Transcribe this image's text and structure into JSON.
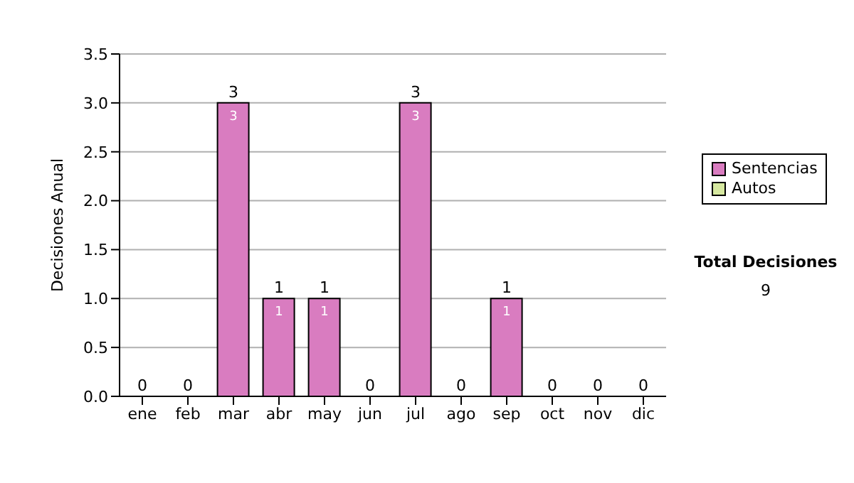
{
  "chart_data": {
    "type": "bar",
    "ylabel": "Decisiones Anual",
    "categories": [
      "ene",
      "feb",
      "mar",
      "abr",
      "may",
      "jun",
      "jul",
      "ago",
      "sep",
      "oct",
      "nov",
      "dic"
    ],
    "series": [
      {
        "name": "Sentencias",
        "color": "#d97cc0",
        "values": [
          0,
          0,
          3,
          1,
          1,
          0,
          3,
          0,
          1,
          0,
          0,
          0
        ],
        "value_labels": [
          null,
          null,
          "3",
          "1",
          "1",
          null,
          "3",
          null,
          "1",
          null,
          null,
          null
        ]
      },
      {
        "name": "Autos",
        "color": "#d6e8a0",
        "values": [
          0,
          0,
          0,
          0,
          0,
          0,
          0,
          0,
          0,
          0,
          0,
          0
        ]
      }
    ],
    "stacked": true,
    "totals": [
      "0",
      "0",
      "3",
      "1",
      "1",
      "0",
      "3",
      "0",
      "1",
      "0",
      "0",
      "0"
    ],
    "ylim": [
      0,
      3.5
    ],
    "yticks": [
      {
        "value": 0,
        "label": "0.0"
      },
      {
        "value": 0.5,
        "label": "0.5"
      },
      {
        "value": 1,
        "label": "1.0"
      },
      {
        "value": 1.5,
        "label": "1.5"
      },
      {
        "value": 2,
        "label": "2.0"
      },
      {
        "value": 2.5,
        "label": "2.5"
      },
      {
        "value": 3,
        "label": "3.0"
      },
      {
        "value": 3.5,
        "label": "3.5"
      }
    ],
    "grid": "y",
    "legend": "right",
    "annotations": [
      "Total Decisiones",
      "9"
    ]
  }
}
